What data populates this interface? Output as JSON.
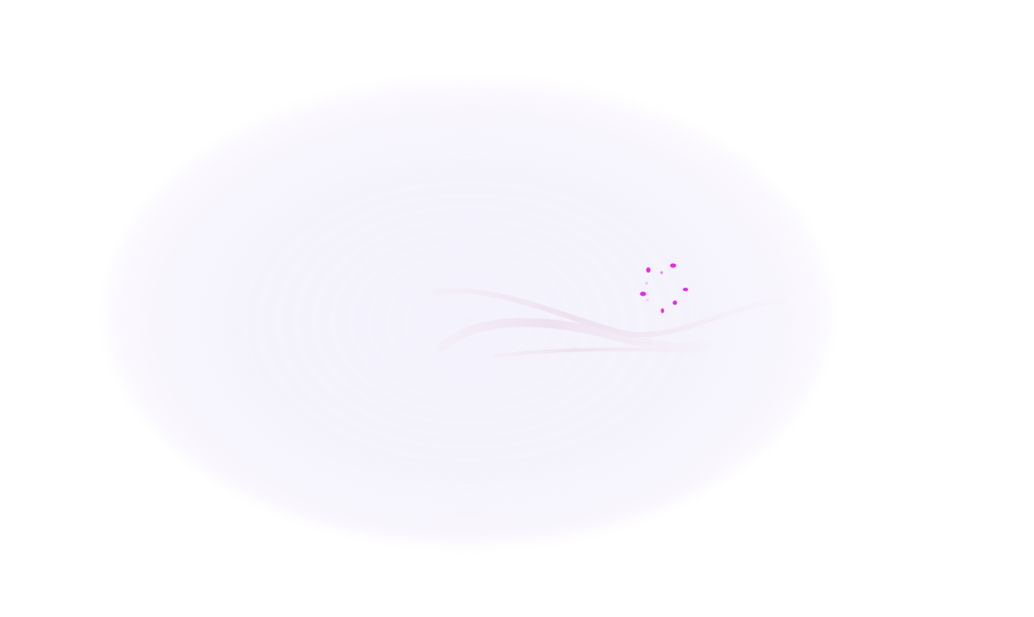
{
  "loader": {
    "state": "loading",
    "spinner_icon": "spinner-icon",
    "accent_color": "#e22ee6",
    "background_glow_color": "#f4f2fc",
    "swoosh_color": "#f2e6f2"
  }
}
